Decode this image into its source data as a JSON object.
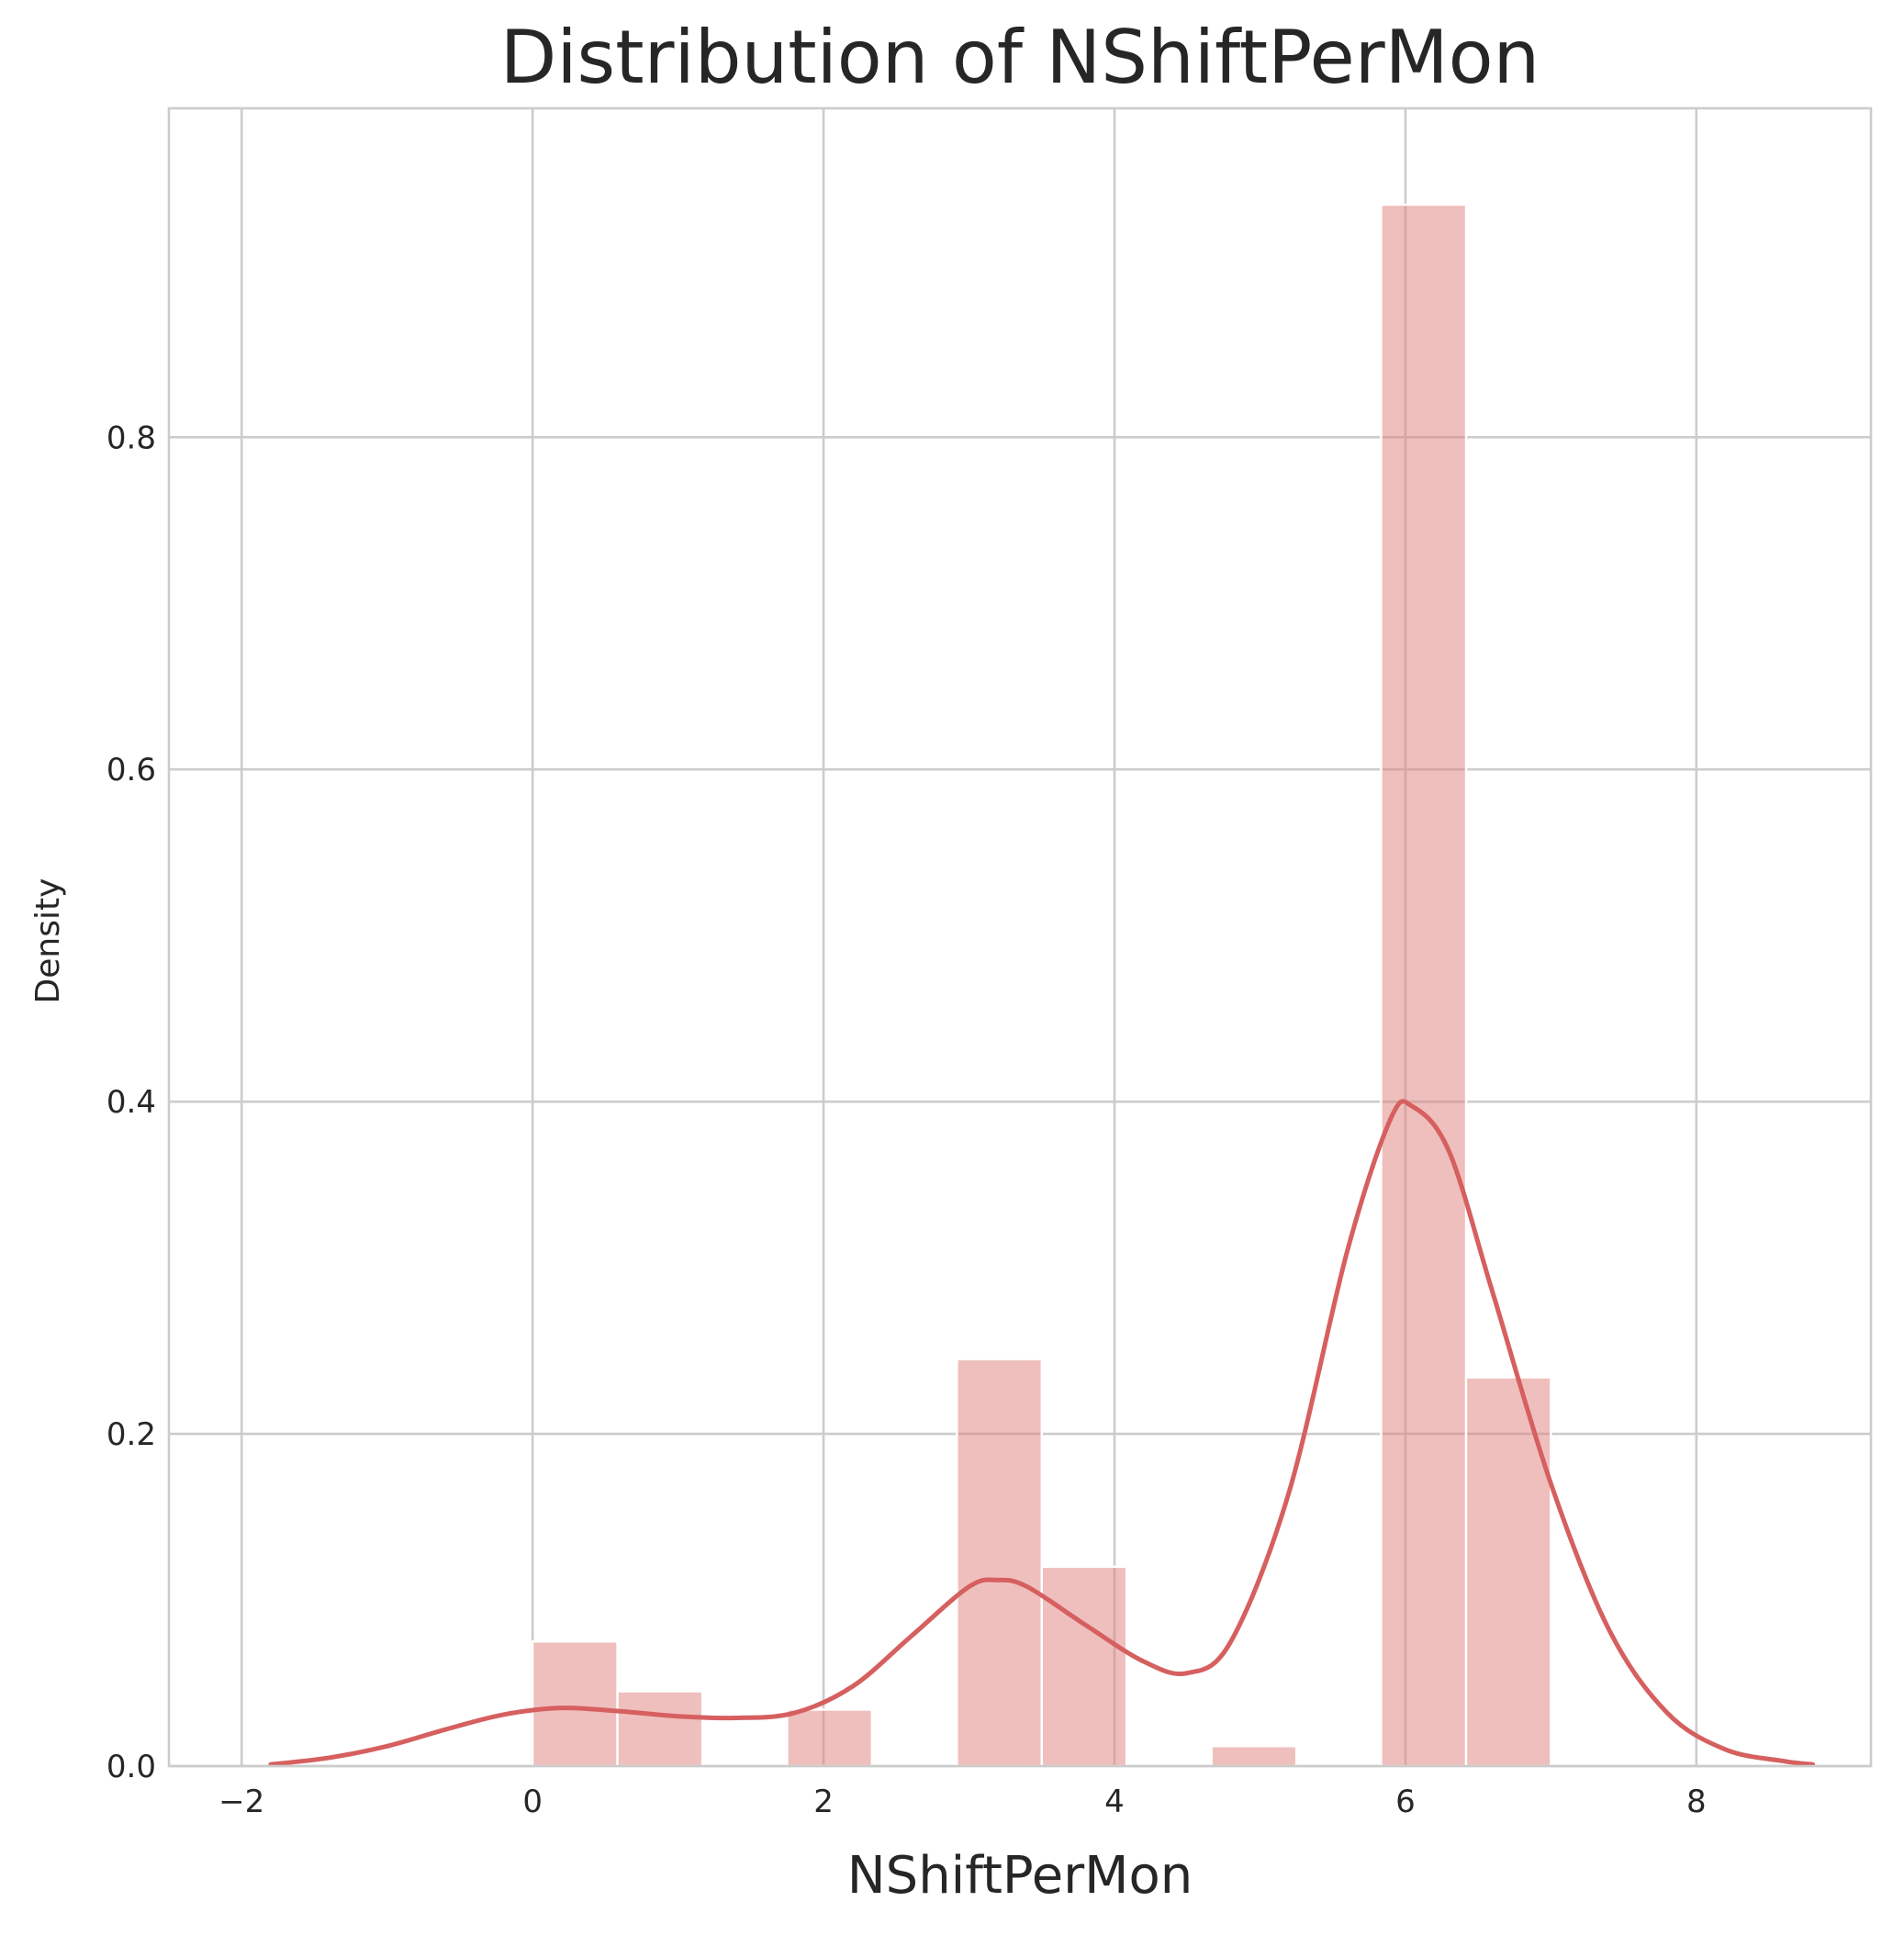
{
  "chart_data": {
    "type": "bar",
    "title": "Distribution of NShiftPerMon",
    "xlabel": "NShiftPerMon",
    "ylabel": "Density",
    "xlim": [
      -2.5,
      9.2
    ],
    "ylim": [
      0,
      0.998
    ],
    "xticks": [
      -2,
      0,
      2,
      4,
      6,
      8
    ],
    "xtick_labels": [
      "−2",
      "0",
      "2",
      "4",
      "6",
      "8"
    ],
    "yticks": [
      0.0,
      0.2,
      0.4,
      0.6,
      0.8
    ],
    "ytick_labels": [
      "0.0",
      "0.2",
      "0.4",
      "0.6",
      "0.8"
    ],
    "grid": true,
    "colors": {
      "bar": "#e0807b",
      "bar_opacity": 0.5,
      "kde": "#d65f5f",
      "grid": "#cccccc"
    },
    "histogram": {
      "bin_edges": [
        0.0,
        0.583,
        1.167,
        1.75,
        2.333,
        2.917,
        3.5,
        4.083,
        4.667,
        5.25,
        5.833,
        6.417,
        7.0
      ],
      "values": [
        0.075,
        0.045,
        0.0,
        0.034,
        0.0,
        0.245,
        0.12,
        0.0,
        0.012,
        0.0,
        0.94,
        0.234
      ]
    },
    "kde": {
      "x": [
        -1.8,
        -1.4,
        -1.0,
        -0.6,
        -0.2,
        0.2,
        0.6,
        1.0,
        1.4,
        1.8,
        2.2,
        2.6,
        3.0,
        3.2,
        3.4,
        3.8,
        4.2,
        4.5,
        4.8,
        5.2,
        5.6,
        5.9,
        6.05,
        6.3,
        6.6,
        7.0,
        7.4,
        7.8,
        8.2,
        8.6,
        8.8
      ],
      "y": [
        0.001,
        0.005,
        0.012,
        0.022,
        0.031,
        0.035,
        0.033,
        0.03,
        0.029,
        0.032,
        0.048,
        0.078,
        0.108,
        0.112,
        0.108,
        0.085,
        0.063,
        0.056,
        0.075,
        0.165,
        0.31,
        0.39,
        0.397,
        0.37,
        0.285,
        0.17,
        0.082,
        0.032,
        0.01,
        0.003,
        0.001
      ]
    }
  }
}
